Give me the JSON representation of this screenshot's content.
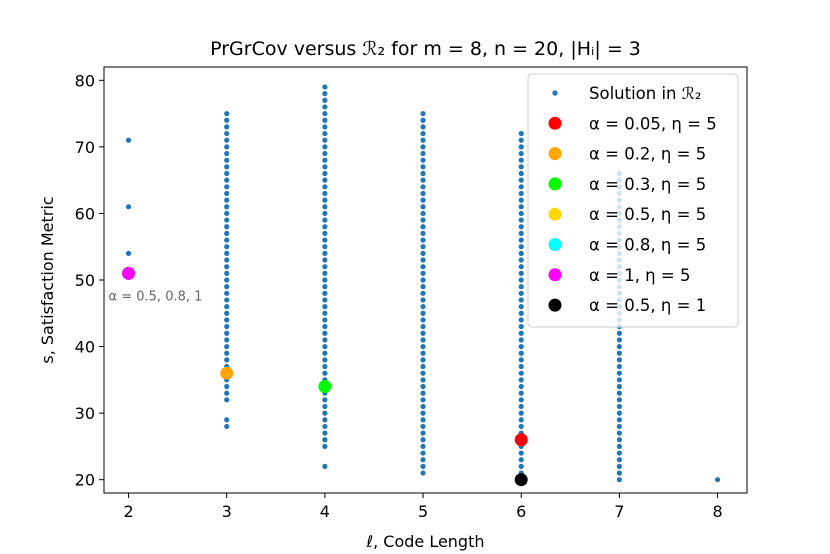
{
  "chart_data": {
    "type": "scatter",
    "title": "PrGrCov versus ℛ₂ for m = 8, n = 20, |Hᵢ| = 3",
    "xlabel": "ℓ, Code Length",
    "ylabel": "s, Satisfaction Metric",
    "xlim": [
      1.75,
      8.3
    ],
    "ylim": [
      18,
      82
    ],
    "xticks": [
      2,
      3,
      4,
      5,
      6,
      7,
      8
    ],
    "yticks": [
      20,
      30,
      40,
      50,
      60,
      70,
      80
    ],
    "grid": false,
    "legend_position": "upper right",
    "background_series": {
      "name": "Solution in ℛ₂",
      "color": "#1f77b4",
      "columns": [
        {
          "x": 2,
          "y": [
            71,
            61,
            54
          ]
        },
        {
          "x": 3,
          "ranges": [
            [
              32,
              75
            ]
          ],
          "y": [
            28,
            29
          ]
        },
        {
          "x": 4,
          "ranges": [
            [
              25,
              79
            ]
          ],
          "y": [
            22
          ]
        },
        {
          "x": 5,
          "ranges": [
            [
              21,
              75
            ]
          ],
          "y": []
        },
        {
          "x": 6,
          "ranges": [
            [
              20,
              72
            ]
          ],
          "y": []
        },
        {
          "x": 7,
          "ranges": [
            [
              20,
              66
            ]
          ],
          "y": []
        },
        {
          "x": 8,
          "ranges": [],
          "y": [
            20
          ]
        }
      ]
    },
    "highlight_series": [
      {
        "label": "α = 0.05, η = 5",
        "color": "#ff0000",
        "points": [
          {
            "x": 6,
            "y": 26
          }
        ]
      },
      {
        "label": "α = 0.2, η = 5",
        "color": "#ffa500",
        "points": [
          {
            "x": 3,
            "y": 36
          }
        ]
      },
      {
        "label": "α = 0.3, η = 5",
        "color": "#00ff00",
        "points": [
          {
            "x": 4,
            "y": 34
          }
        ]
      },
      {
        "label": "α = 0.5, η = 5",
        "color": "#ffd700",
        "points": [
          {
            "x": 2,
            "y": 51
          }
        ]
      },
      {
        "label": "α = 0.8, η = 5",
        "color": "#00ffff",
        "points": [
          {
            "x": 2,
            "y": 51
          }
        ]
      },
      {
        "label": "α = 1, η = 5",
        "color": "#ff00ff",
        "points": [
          {
            "x": 2,
            "y": 51
          }
        ]
      },
      {
        "label": "α = 0.5, η = 1",
        "color": "#000000",
        "points": [
          {
            "x": 6,
            "y": 20
          }
        ]
      }
    ],
    "annotations": [
      {
        "text": "α = 0.5, 0.8, 1",
        "x": 2,
        "y": 51
      }
    ]
  }
}
